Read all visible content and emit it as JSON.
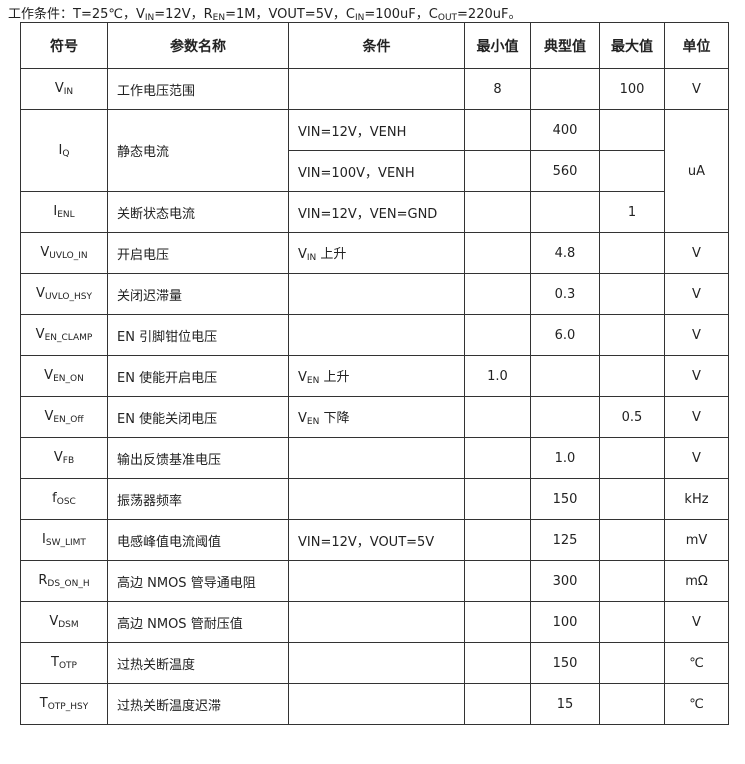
{
  "conditions": {
    "prefix": "工作条件：T=25℃，",
    "v": "V",
    "v_sub": "IN",
    "v_val": "=12V，",
    "r": "R",
    "r_sub": "EN",
    "r_val": "=1M，VOUT=5V，",
    "cin": "C",
    "cin_sub": "IN",
    "cin_val": "=100uF，",
    "cout": "C",
    "cout_sub": "OUT",
    "cout_val": "=220uF。"
  },
  "headers": [
    "符号",
    "参数名称",
    "条件",
    "最小值",
    "典型值",
    "最大值",
    "单位"
  ],
  "rows": [
    {
      "sym": "V",
      "sub": "IN",
      "name": "工作电压范围",
      "cond": "",
      "min": "8",
      "typ": "",
      "max": "100",
      "unit": "V"
    },
    {
      "sym": "I",
      "sub": "Q",
      "name": "静态电流",
      "cond": "VIN=12V，VENH",
      "min": "",
      "typ": "400",
      "max": "",
      "unit": "uA"
    },
    {
      "cond": "VIN=100V，VENH",
      "min": "",
      "typ": "560",
      "max": ""
    },
    {
      "sym": "I",
      "sub": "ENL",
      "name": "关断状态电流",
      "cond": "VIN=12V，VEN=GND",
      "min": "",
      "typ": "",
      "max": "1"
    },
    {
      "sym": "V",
      "sub": "UVLO_IN",
      "name": "开启电压",
      "cond": "V",
      "cond_sub": "IN",
      "cond_tail": " 上升",
      "min": "",
      "typ": "4.8",
      "max": "",
      "unit": "V"
    },
    {
      "sym": "V",
      "sub": "UVLO_HSY",
      "name": "关闭迟滞量",
      "cond": "",
      "min": "",
      "typ": "0.3",
      "max": "",
      "unit": "V"
    },
    {
      "sym": "V",
      "sub": "EN_CLAMP",
      "name": "EN 引脚钳位电压",
      "cond": "",
      "min": "",
      "typ": "6.0",
      "max": "",
      "unit": "V"
    },
    {
      "sym": "V",
      "sub": "EN_ON",
      "name": "EN 使能开启电压",
      "cond": "V",
      "cond_sub": "EN",
      "cond_tail": " 上升",
      "min": "1.0",
      "typ": "",
      "max": "",
      "unit": "V"
    },
    {
      "sym": "V",
      "sub": "EN_Off",
      "name": "EN 使能关闭电压",
      "cond": "V",
      "cond_sub": "EN",
      "cond_tail": " 下降",
      "min": "",
      "typ": "",
      "max": "0.5",
      "unit": "V"
    },
    {
      "sym": "V",
      "sub": "FB",
      "name": "输出反馈基准电压",
      "cond": "",
      "min": "",
      "typ": "1.0",
      "max": "",
      "unit": "V"
    },
    {
      "sym": "f",
      "sub": "OSC",
      "name": "振荡器频率",
      "cond": "",
      "min": "",
      "typ": "150",
      "max": "",
      "unit": "kHz"
    },
    {
      "sym": "I",
      "sub": "SW_LIMT",
      "name": "电感峰值电流阈值",
      "cond": "VIN=12V，VOUT=5V",
      "min": "",
      "typ": "125",
      "max": "",
      "unit": "mV"
    },
    {
      "sym": "R",
      "sub": "DS_ON_H",
      "name": "高边 NMOS 管导通电阻",
      "cond": "",
      "min": "",
      "typ": "300",
      "max": "",
      "unit": "mΩ"
    },
    {
      "sym": "V",
      "sub": "DSM",
      "name": "高边 NMOS 管耐压值",
      "cond": "",
      "min": "",
      "typ": "100",
      "max": "",
      "unit": "V"
    },
    {
      "sym": "T",
      "sub": "OTP",
      "name": "过热关断温度",
      "cond": "",
      "min": "",
      "typ": "150",
      "max": "",
      "unit": "℃"
    },
    {
      "sym": "T",
      "sub": "OTP_HSY",
      "name": "过热关断温度迟滞",
      "cond": "",
      "min": "",
      "typ": "15",
      "max": "",
      "unit": "℃"
    }
  ]
}
